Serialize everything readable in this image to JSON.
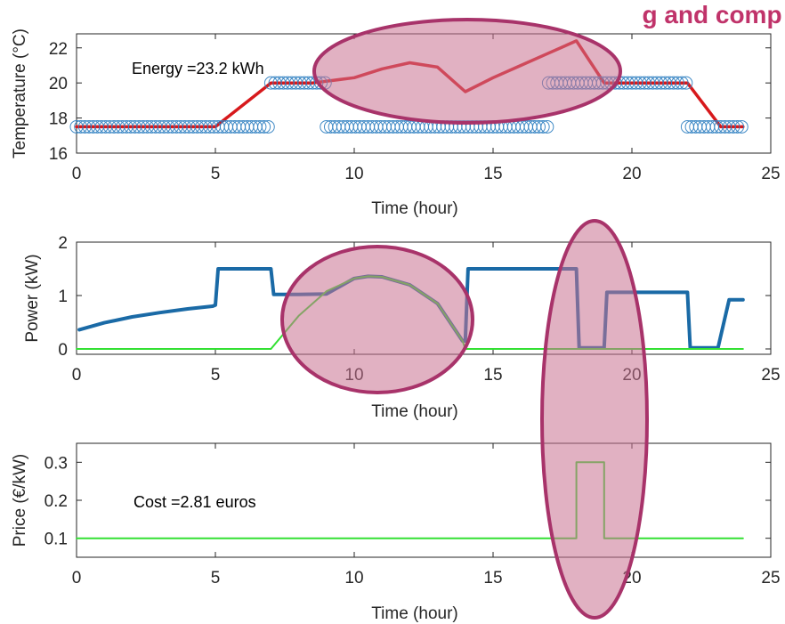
{
  "headline": "g and comp",
  "colors": {
    "temperature": "#d7191c",
    "setpoint_markers": "#2f7fc1",
    "power": "#1a6aa6",
    "solar": "#33e033",
    "price": "#33e033",
    "highlight_fill": "#c9718f",
    "highlight_stroke": "#a8336a",
    "headline": "#c0336a"
  },
  "chart_data": [
    {
      "type": "line",
      "xlabel": "Time (hour)",
      "ylabel": "Temperature (°C)",
      "xlim": [
        0,
        25
      ],
      "ylim": [
        16,
        22.8
      ],
      "xticks": [
        "0",
        "5",
        "10",
        "15",
        "20",
        "25"
      ],
      "yticks": [
        "16",
        "18",
        "20",
        "22"
      ],
      "annotation": "Energy =23.2 kWh",
      "series": [
        {
          "kind": "line",
          "x": [
            0,
            5,
            7,
            8.5,
            10,
            11,
            12,
            13,
            14,
            15,
            16,
            17,
            18,
            19,
            22,
            23.2,
            24
          ],
          "y": [
            17.5,
            17.5,
            20,
            20,
            20.3,
            20.8,
            21.15,
            20.9,
            19.5,
            20.3,
            21,
            21.7,
            22.4,
            20,
            20,
            17.5,
            17.5
          ]
        },
        {
          "kind": "markers",
          "segments": [
            {
              "x_start": 0,
              "x_end": 7,
              "y": 17.5
            },
            {
              "x_start": 7,
              "x_end": 9,
              "y": 20
            },
            {
              "x_start": 9,
              "x_end": 17,
              "y": 17.5
            },
            {
              "x_start": 17,
              "x_end": 22,
              "y": 20
            },
            {
              "x_start": 22,
              "x_end": 24,
              "y": 17.5
            }
          ]
        }
      ]
    },
    {
      "type": "line",
      "xlabel": "Time (hour)",
      "ylabel": "Power (kW)",
      "xlim": [
        0,
        25
      ],
      "ylim": [
        -0.1,
        2
      ],
      "xticks": [
        "0",
        "5",
        "10",
        "15",
        "20",
        "25"
      ],
      "yticks": [
        "0",
        "1",
        "2"
      ],
      "series": [
        {
          "x": [
            0.1,
            1,
            2,
            3,
            4,
            4.9,
            5,
            5.1,
            7,
            7.1,
            8,
            9,
            10,
            10.5,
            11,
            12,
            13,
            13.9,
            14,
            14.1,
            18,
            18.1,
            19,
            19.1,
            22,
            22.1,
            23,
            23.1,
            23.5,
            24
          ],
          "y": [
            0.36,
            0.49,
            0.6,
            0.68,
            0.75,
            0.8,
            0.82,
            1.5,
            1.5,
            1.02,
            1.02,
            1.03,
            1.32,
            1.36,
            1.35,
            1.2,
            0.85,
            0.15,
            0.15,
            1.5,
            1.5,
            0.02,
            0.02,
            1.06,
            1.06,
            0.02,
            0.02,
            0.02,
            0.92,
            0.92
          ]
        },
        {
          "x": [
            0,
            7,
            8,
            9,
            10,
            10.5,
            11,
            12,
            13,
            13.9,
            14,
            24
          ],
          "y": [
            0,
            0,
            0.62,
            1.08,
            1.32,
            1.36,
            1.35,
            1.2,
            0.85,
            0.15,
            0,
            0
          ]
        }
      ]
    },
    {
      "type": "line",
      "xlabel": "Time (hour)",
      "ylabel": "Price (€/kW)",
      "xlim": [
        0,
        25
      ],
      "ylim": [
        0.05,
        0.35
      ],
      "xticks": [
        "0",
        "5",
        "10",
        "15",
        "20",
        "25"
      ],
      "yticks": [
        "0.1",
        "0.2",
        "0.3"
      ],
      "annotation": "Cost =2.81 euros",
      "series": [
        {
          "x": [
            0,
            18,
            18,
            19,
            19,
            24
          ],
          "y": [
            0.1,
            0.1,
            0.3,
            0.3,
            0.1,
            0.1
          ]
        }
      ]
    }
  ]
}
